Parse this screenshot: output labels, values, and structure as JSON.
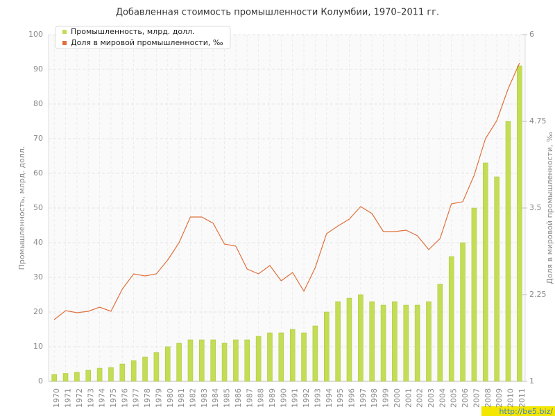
{
  "chart_data": {
    "type": "bar",
    "title": "Добавленная стоимость промышленности Колумбии, 1970–2011 гг.",
    "y_label": "Промышленность, млрд. долл.",
    "y2_label": "Доля в мировой промышленности, ‰",
    "watermark": "http://be5.biz/",
    "legend": "top-left",
    "grid": true,
    "categories": [
      "1970",
      "1971",
      "1972",
      "1973",
      "1974",
      "1975",
      "1976",
      "1977",
      "1978",
      "1979",
      "1980",
      "1981",
      "1982",
      "1983",
      "1984",
      "1985",
      "1986",
      "1987",
      "1988",
      "1989",
      "1990",
      "1991",
      "1992",
      "1993",
      "1994",
      "1995",
      "1996",
      "1997",
      "1998",
      "1999",
      "2000",
      "2001",
      "2002",
      "2003",
      "2004",
      "2005",
      "2006",
      "2007",
      "2008",
      "2009",
      "2010",
      "2011"
    ],
    "series": [
      {
        "name": "Промышленность, млрд. долл.",
        "type": "bar",
        "color": "#c3dd55",
        "values": [
          2,
          2.3,
          2.6,
          3.2,
          3.8,
          4,
          5,
          6,
          7,
          8.3,
          10,
          11,
          12,
          12,
          12,
          11,
          12,
          12,
          13,
          14,
          14,
          15,
          14,
          16,
          20,
          23,
          24,
          25,
          23,
          22,
          23,
          22,
          22,
          23,
          28,
          36,
          40,
          50,
          63,
          59,
          75,
          91
        ]
      },
      {
        "name": "Доля в мировой промышленности, ‰",
        "type": "line",
        "axis": "y2",
        "color": "#e0703c",
        "values": [
          1.89,
          2.02,
          1.99,
          2.01,
          2.07,
          2.01,
          2.33,
          2.55,
          2.52,
          2.55,
          2.75,
          3.0,
          3.37,
          3.37,
          3.28,
          2.98,
          2.95,
          2.62,
          2.55,
          2.67,
          2.45,
          2.57,
          2.3,
          2.64,
          3.13,
          3.24,
          3.34,
          3.52,
          3.42,
          3.16,
          3.16,
          3.18,
          3.1,
          2.9,
          3.06,
          3.56,
          3.59,
          3.97,
          4.5,
          4.76,
          5.22,
          5.59
        ]
      }
    ],
    "ylim": [
      0,
      100
    ],
    "yticks": [
      0,
      10,
      20,
      30,
      40,
      50,
      60,
      70,
      80,
      90,
      100
    ],
    "y2lim": [
      1,
      6
    ],
    "y2ticks": [
      1,
      2.25,
      3.5,
      4.75,
      6
    ]
  }
}
